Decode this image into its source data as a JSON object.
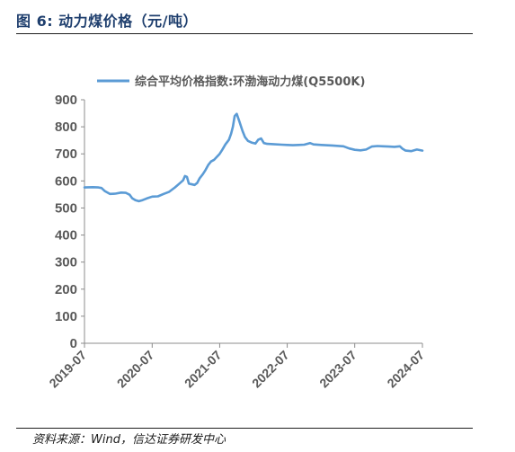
{
  "figure_title": "图 6:  动力煤价格（元/吨）",
  "source": "资料来源：Wind，信达证券研发中心",
  "chart_data": {
    "type": "line",
    "series": [
      {
        "name": "综合平均价格指数:环渤海动力煤(Q5500K)",
        "color": "#5b9bd5",
        "points": [
          [
            "2019-07-01",
            576
          ],
          [
            "2019-08-15",
            577
          ],
          [
            "2019-09-15",
            576
          ],
          [
            "2019-10-01",
            574
          ],
          [
            "2019-10-20",
            562
          ],
          [
            "2019-11-15",
            552
          ],
          [
            "2019-12-15",
            553
          ],
          [
            "2020-01-15",
            557
          ],
          [
            "2020-02-10",
            556
          ],
          [
            "2020-03-01",
            549
          ],
          [
            "2020-03-15",
            536
          ],
          [
            "2020-04-01",
            529
          ],
          [
            "2020-04-20",
            525
          ],
          [
            "2020-05-10",
            529
          ],
          [
            "2020-06-01",
            535
          ],
          [
            "2020-07-01",
            542
          ],
          [
            "2020-08-01",
            543
          ],
          [
            "2020-09-01",
            552
          ],
          [
            "2020-10-01",
            560
          ],
          [
            "2020-11-01",
            576
          ],
          [
            "2020-11-25",
            590
          ],
          [
            "2020-12-15",
            602
          ],
          [
            "2020-12-25",
            618
          ],
          [
            "2021-01-05",
            615
          ],
          [
            "2021-01-15",
            590
          ],
          [
            "2021-02-15",
            585
          ],
          [
            "2021-03-01",
            592
          ],
          [
            "2021-03-15",
            610
          ],
          [
            "2021-04-01",
            625
          ],
          [
            "2021-04-15",
            640
          ],
          [
            "2021-05-01",
            660
          ],
          [
            "2021-05-15",
            672
          ],
          [
            "2021-06-01",
            678
          ],
          [
            "2021-06-15",
            688
          ],
          [
            "2021-07-01",
            700
          ],
          [
            "2021-07-15",
            715
          ],
          [
            "2021-08-01",
            735
          ],
          [
            "2021-08-20",
            752
          ],
          [
            "2021-09-01",
            775
          ],
          [
            "2021-09-10",
            800
          ],
          [
            "2021-09-20",
            840
          ],
          [
            "2021-10-01",
            848
          ],
          [
            "2021-10-15",
            820
          ],
          [
            "2021-11-01",
            785
          ],
          [
            "2021-11-15",
            762
          ],
          [
            "2021-12-01",
            748
          ],
          [
            "2021-12-20",
            742
          ],
          [
            "2022-01-10",
            738
          ],
          [
            "2022-01-25",
            752
          ],
          [
            "2022-02-10",
            757
          ],
          [
            "2022-02-25",
            740
          ],
          [
            "2022-03-15",
            737
          ],
          [
            "2022-04-15",
            736
          ],
          [
            "2022-06-01",
            734
          ],
          [
            "2022-07-01",
            733
          ],
          [
            "2022-08-01",
            732
          ],
          [
            "2022-09-01",
            733
          ],
          [
            "2022-10-01",
            734
          ],
          [
            "2022-11-01",
            740
          ],
          [
            "2022-11-20",
            735
          ],
          [
            "2023-01-01",
            733
          ],
          [
            "2023-03-01",
            731
          ],
          [
            "2023-05-01",
            728
          ],
          [
            "2023-06-01",
            720
          ],
          [
            "2023-07-01",
            715
          ],
          [
            "2023-08-01",
            713
          ],
          [
            "2023-09-01",
            716
          ],
          [
            "2023-10-01",
            727
          ],
          [
            "2023-11-01",
            729
          ],
          [
            "2023-12-01",
            728
          ],
          [
            "2024-01-01",
            727
          ],
          [
            "2024-02-01",
            726
          ],
          [
            "2024-03-01",
            728
          ],
          [
            "2024-03-15",
            719
          ],
          [
            "2024-04-01",
            712
          ],
          [
            "2024-05-01",
            710
          ],
          [
            "2024-06-01",
            716
          ],
          [
            "2024-07-01",
            712
          ]
        ]
      }
    ],
    "x_ticks": [
      "2019-07",
      "2020-07",
      "2021-07",
      "2022-07",
      "2023-07",
      "2024-07"
    ],
    "y_ticks": [
      "0",
      "100",
      "200",
      "300",
      "400",
      "500",
      "600",
      "700",
      "800",
      "900"
    ],
    "ylim": [
      0,
      900
    ],
    "xlim": [
      "2019-07-01",
      "2024-07-01"
    ],
    "grid": false,
    "legend_position": "top"
  }
}
